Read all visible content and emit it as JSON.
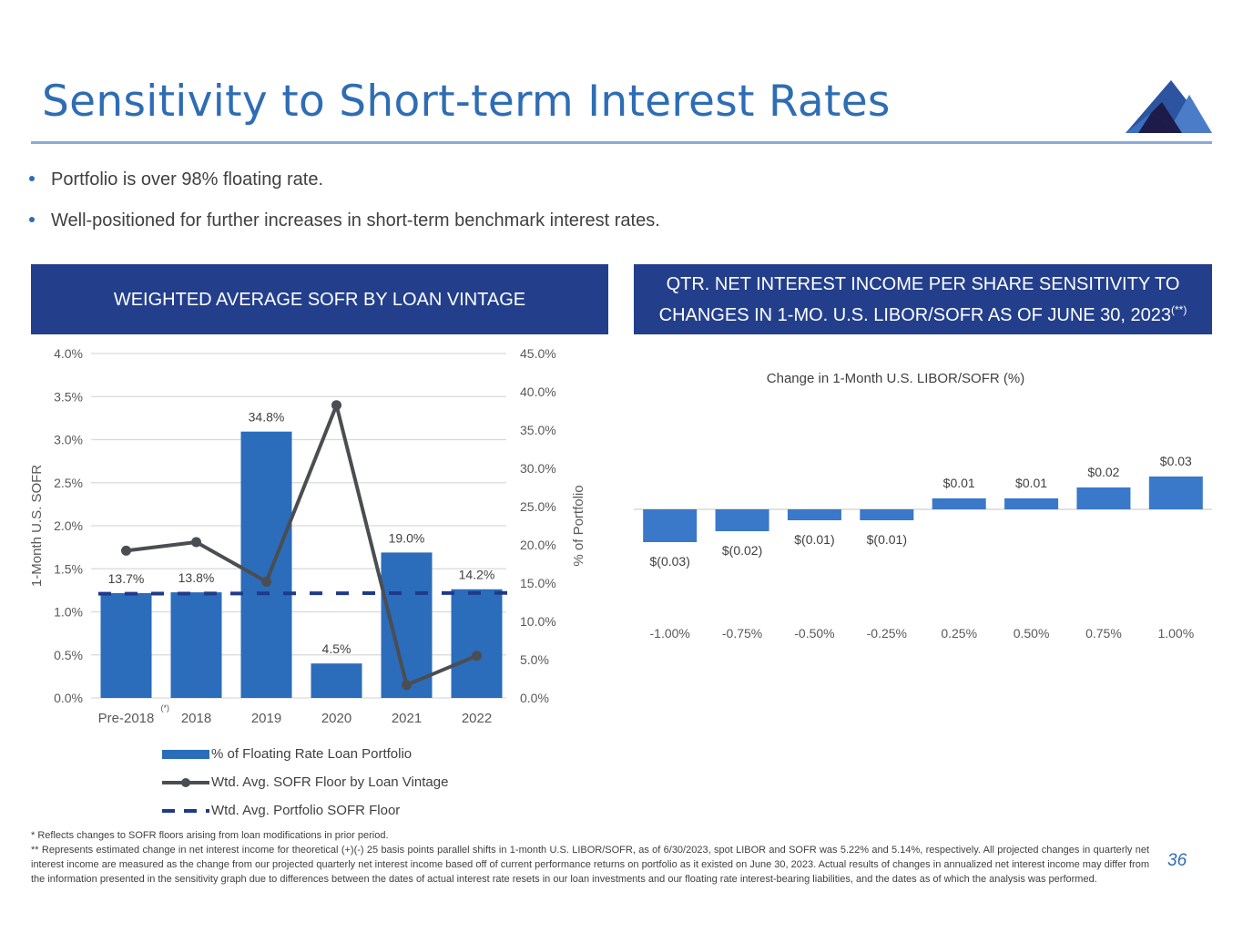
{
  "page": {
    "title": "Sensitivity to Short-term Interest Rates",
    "page_number": "36",
    "accent_color": "#2e6db4",
    "header_color": "#233f8c"
  },
  "logo": {
    "icon": "mountain-logo-icon"
  },
  "bullets": [
    "Portfolio is over 98% floating rate.",
    "Well-positioned for further increases in short-term benchmark interest rates."
  ],
  "left_panel": {
    "header": "WEIGHTED AVERAGE SOFR BY LOAN VINTAGE"
  },
  "right_panel": {
    "header_line1": "QTR. NET INTEREST INCOME PER SHARE SENSITIVITY TO",
    "header_line2": "CHANGES IN 1-MO. U.S. LIBOR/SOFR AS OF JUNE 30, 2023",
    "header_sup": "(**)"
  },
  "chart_data": [
    {
      "type": "bar",
      "title": "WEIGHTED AVERAGE SOFR BY LOAN VINTAGE",
      "categories": [
        "Pre-2018",
        "2018",
        "2019",
        "2020",
        "2021",
        "2022"
      ],
      "category_superscripts": [
        "(*)",
        "",
        "",
        "",
        "",
        ""
      ],
      "ylabel": "1-Month U.S. SOFR",
      "ylabel_right": "% of Portfolio",
      "ylim": [
        0,
        4.0
      ],
      "ylim_right": [
        0,
        45.0
      ],
      "yticks": [
        "0.0%",
        "0.5%",
        "1.0%",
        "1.5%",
        "2.0%",
        "2.5%",
        "3.0%",
        "3.5%",
        "4.0%"
      ],
      "yticks_right": [
        "0.0%",
        "5.0%",
        "10.0%",
        "15.0%",
        "20.0%",
        "25.0%",
        "30.0%",
        "35.0%",
        "40.0%",
        "45.0%"
      ],
      "grid": true,
      "series": [
        {
          "name": "% of Floating Rate Loan Portfolio",
          "kind": "bar",
          "axis": "right",
          "color": "#2b6cbb",
          "values": [
            13.7,
            13.8,
            34.8,
            4.5,
            19.0,
            14.2
          ],
          "labels": [
            "13.7%",
            "13.8%",
            "34.8%",
            "4.5%",
            "19.0%",
            "14.2%"
          ]
        },
        {
          "name": "Wtd. Avg. SOFR Floor by Loan Vintage",
          "kind": "line",
          "axis": "left",
          "color": "#4a4e52",
          "values": [
            1.71,
            1.81,
            1.35,
            3.4,
            0.15,
            0.49
          ]
        },
        {
          "name": "Wtd. Avg. Portfolio SOFR Floor",
          "kind": "dashed",
          "axis": "left",
          "color": "#1f3a8a",
          "values": [
            1.21,
            1.21,
            1.21,
            1.21,
            1.21,
            1.22
          ]
        }
      ],
      "legend_position": "bottom"
    },
    {
      "type": "bar",
      "title": "Change in 1-Month U.S. LIBOR/SOFR (%)",
      "categories": [
        "-1.00%",
        "-0.75%",
        "-0.50%",
        "-0.25%",
        "0.25%",
        "0.50%",
        "0.75%",
        "1.00%"
      ],
      "values": [
        -0.03,
        -0.02,
        -0.01,
        -0.01,
        0.01,
        0.01,
        0.02,
        0.03
      ],
      "labels": [
        "$(0.03)",
        "$(0.02)",
        "$(0.01)",
        "$(0.01)",
        "$0.01",
        "$0.01",
        "$0.02",
        "$0.03"
      ],
      "xlabel": "",
      "ylabel": "",
      "ylim": [
        -0.05,
        0.05
      ],
      "grid": false,
      "color": "#3a78c9"
    }
  ],
  "footnotes": [
    "* Reflects changes to SOFR floors arising from loan modifications in prior period.",
    "** Represents estimated change in net interest income for theoretical (+)(-) 25 basis points parallel shifts in 1-month U.S. LIBOR/SOFR, as of 6/30/2023, spot LIBOR and SOFR was 5.22% and 5.14%, respectively.  All projected changes in quarterly net interest income are measured as the change from our projected quarterly net interest income based off of current performance returns on portfolio as it existed on June 30, 2023. Actual results of changes in annualized net interest income may differ from the information presented in the sensitivity graph due to differences between the dates of actual interest rate resets in our loan investments and our floating rate interest-bearing liabilities, and the dates as of which the analysis was performed."
  ]
}
